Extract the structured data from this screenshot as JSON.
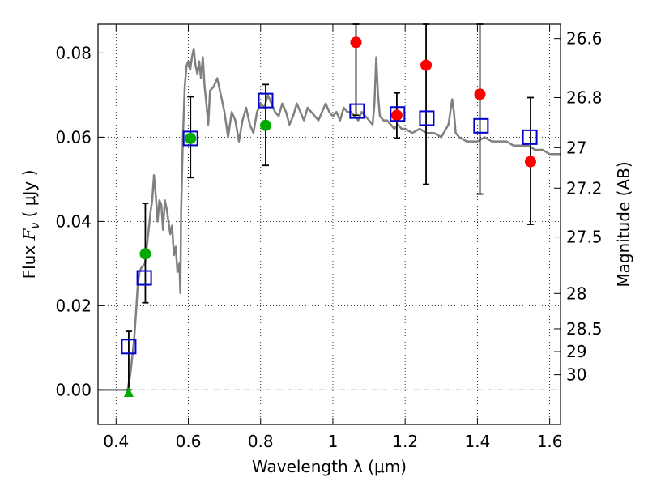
{
  "chart_data": {
    "type": "scatter",
    "xlabel": "Wavelength  λ (μm)",
    "ylabel_prefix": "Flux  ",
    "ylabel_symbol": "F",
    "ylabel_subscript": "ν",
    "ylabel_suffix": "  ( μJy )",
    "ylabel_right": "Magnitude (AB)",
    "xlim": [
      0.35,
      1.63
    ],
    "ylim": [
      -0.0082,
      0.0868
    ],
    "grid": true,
    "x_ticks": [
      0.4,
      0.6,
      0.8,
      1.0,
      1.2,
      1.4,
      1.6
    ],
    "x_tick_labels": [
      "0.4",
      "0.6",
      "0.8",
      "1",
      "1.2",
      "1.4",
      "1.6"
    ],
    "y_ticks": [
      0.0,
      0.02,
      0.04,
      0.06,
      0.08
    ],
    "y_tick_labels": [
      "0.00",
      "0.02",
      "0.04",
      "0.06",
      "0.08"
    ],
    "right_ticks": [
      {
        "label": "26.6",
        "flux": 0.0834
      },
      {
        "label": "26.8",
        "flux": 0.0694
      },
      {
        "label": "27",
        "flux": 0.0575
      },
      {
        "label": "27.2",
        "flux": 0.0479
      },
      {
        "label": "27.5",
        "flux": 0.0363
      },
      {
        "label": "28",
        "flux": 0.0229
      },
      {
        "label": "28.5",
        "flux": 0.0145
      },
      {
        "label": "29",
        "flux": 0.0091
      },
      {
        "label": "30",
        "flux": 0.0036
      }
    ],
    "series": [
      {
        "name": "model spectrum",
        "kind": "line",
        "color": "#808080",
        "x": [
          0.35,
          0.42,
          0.432,
          0.44,
          0.45,
          0.455,
          0.46,
          0.465,
          0.47,
          0.48,
          0.49,
          0.495,
          0.5,
          0.505,
          0.51,
          0.515,
          0.52,
          0.525,
          0.53,
          0.535,
          0.54,
          0.545,
          0.55,
          0.555,
          0.56,
          0.565,
          0.57,
          0.575,
          0.578,
          0.58,
          0.585,
          0.59,
          0.595,
          0.6,
          0.605,
          0.61,
          0.615,
          0.62,
          0.625,
          0.63,
          0.635,
          0.64,
          0.645,
          0.65,
          0.655,
          0.66,
          0.67,
          0.68,
          0.69,
          0.7,
          0.71,
          0.72,
          0.73,
          0.74,
          0.75,
          0.76,
          0.77,
          0.78,
          0.79,
          0.8,
          0.81,
          0.82,
          0.83,
          0.84,
          0.85,
          0.86,
          0.87,
          0.88,
          0.89,
          0.9,
          0.91,
          0.92,
          0.93,
          0.94,
          0.95,
          0.96,
          0.97,
          0.98,
          0.99,
          1.0,
          1.01,
          1.02,
          1.03,
          1.04,
          1.05,
          1.06,
          1.07,
          1.08,
          1.09,
          1.1,
          1.11,
          1.115,
          1.12,
          1.125,
          1.13,
          1.14,
          1.15,
          1.16,
          1.17,
          1.18,
          1.19,
          1.2,
          1.22,
          1.24,
          1.26,
          1.28,
          1.3,
          1.32,
          1.33,
          1.335,
          1.34,
          1.35,
          1.37,
          1.4,
          1.42,
          1.44,
          1.46,
          1.48,
          1.5,
          1.52,
          1.54,
          1.56,
          1.58,
          1.6,
          1.63
        ],
        "y": [
          0.0,
          0.0,
          0.0,
          0.004,
          0.012,
          0.018,
          0.025,
          0.028,
          0.029,
          0.03,
          0.038,
          0.042,
          0.045,
          0.051,
          0.046,
          0.04,
          0.045,
          0.044,
          0.038,
          0.045,
          0.043,
          0.04,
          0.037,
          0.039,
          0.032,
          0.034,
          0.028,
          0.03,
          0.023,
          0.042,
          0.06,
          0.072,
          0.077,
          0.078,
          0.076,
          0.079,
          0.081,
          0.077,
          0.075,
          0.078,
          0.074,
          0.079,
          0.072,
          0.068,
          0.063,
          0.071,
          0.072,
          0.074,
          0.07,
          0.066,
          0.06,
          0.066,
          0.064,
          0.059,
          0.064,
          0.067,
          0.063,
          0.061,
          0.066,
          0.068,
          0.067,
          0.07,
          0.068,
          0.066,
          0.065,
          0.068,
          0.066,
          0.063,
          0.065,
          0.068,
          0.066,
          0.064,
          0.067,
          0.066,
          0.065,
          0.064,
          0.066,
          0.068,
          0.066,
          0.065,
          0.066,
          0.064,
          0.067,
          0.066,
          0.066,
          0.065,
          0.064,
          0.066,
          0.065,
          0.064,
          0.063,
          0.068,
          0.079,
          0.07,
          0.065,
          0.064,
          0.064,
          0.063,
          0.062,
          0.063,
          0.062,
          0.062,
          0.061,
          0.062,
          0.061,
          0.061,
          0.06,
          0.063,
          0.069,
          0.066,
          0.061,
          0.06,
          0.059,
          0.059,
          0.06,
          0.059,
          0.059,
          0.059,
          0.058,
          0.058,
          0.058,
          0.057,
          0.057,
          0.056,
          0.056
        ]
      },
      {
        "name": "model photometry",
        "kind": "open-square",
        "color": "#0000cc",
        "x": [
          0.435,
          0.478,
          0.606,
          0.814,
          1.067,
          1.179,
          1.26,
          1.41,
          1.545
        ],
        "y": [
          0.0103,
          0.0266,
          0.0597,
          0.0687,
          0.0662,
          0.0655,
          0.0645,
          0.0627,
          0.06
        ]
      },
      {
        "name": "measured flux",
        "kind": "filled-circle",
        "points": [
          {
            "x": 0.481,
            "y": 0.0323,
            "color": "#00aa00"
          },
          {
            "x": 0.606,
            "y": 0.0597,
            "color": "#00aa00"
          },
          {
            "x": 0.814,
            "y": 0.0628,
            "color": "#00aa00"
          },
          {
            "x": 1.064,
            "y": 0.0825,
            "color": "#ff0000"
          },
          {
            "x": 1.177,
            "y": 0.0652,
            "color": "#ff0000"
          },
          {
            "x": 1.258,
            "y": 0.0771,
            "color": "#ff0000"
          },
          {
            "x": 1.407,
            "y": 0.0702,
            "color": "#ff0000"
          },
          {
            "x": 1.547,
            "y": 0.0542,
            "color": "#ff0000"
          }
        ]
      },
      {
        "name": "upper limit",
        "kind": "triangle",
        "color": "#00aa00",
        "x": [
          0.435
        ],
        "y": [
          -0.0005
        ]
      }
    ],
    "error_bars": [
      {
        "x": 0.435,
        "ylo": 0.0,
        "yhi": 0.0139
      },
      {
        "x": 0.481,
        "ylo": 0.0207,
        "yhi": 0.0443
      },
      {
        "x": 0.606,
        "ylo": 0.0504,
        "yhi": 0.0696
      },
      {
        "x": 0.814,
        "ylo": 0.0533,
        "yhi": 0.0725
      },
      {
        "x": 1.064,
        "ylo": 0.0652,
        "yhi": 0.0868
      },
      {
        "x": 1.177,
        "ylo": 0.0598,
        "yhi": 0.0705
      },
      {
        "x": 1.258,
        "ylo": 0.0488,
        "yhi": 0.0868
      },
      {
        "x": 1.407,
        "ylo": 0.0465,
        "yhi": 0.0868
      },
      {
        "x": 1.547,
        "ylo": 0.0393,
        "yhi": 0.0694
      }
    ]
  }
}
